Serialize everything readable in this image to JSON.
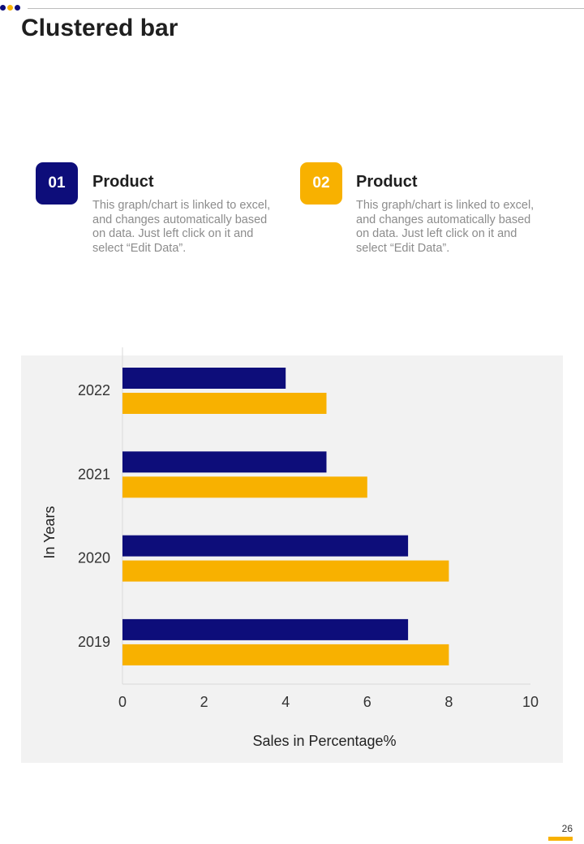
{
  "page": {
    "title": "Clustered bar",
    "page_number": "26"
  },
  "colors": {
    "navy": "#0d0d7a",
    "gold": "#f8b100",
    "dot_colors": [
      "#0d0d7a",
      "#f8b100",
      "#0d0d7a"
    ]
  },
  "cards": [
    {
      "number": "01",
      "title": "Product",
      "description": "This graph/chart is linked to excel, and changes automatically based on data. Just left click on it and select “Edit Data”.",
      "color": "#0d0d7a"
    },
    {
      "number": "02",
      "title": "Product",
      "description": "This graph/chart is linked to excel, and changes automatically based on data. Just left click on it and select “Edit Data”.",
      "color": "#f8b100"
    }
  ],
  "chart_data": {
    "type": "bar",
    "orientation": "horizontal",
    "categories": [
      "2022",
      "2021",
      "2020",
      "2019"
    ],
    "series": [
      {
        "name": "Product 01",
        "color": "#0d0d7a",
        "values": [
          4,
          5,
          7,
          7
        ]
      },
      {
        "name": "Product 02",
        "color": "#f8b100",
        "values": [
          5,
          6,
          8,
          8
        ]
      }
    ],
    "xlabel": "Sales in Percentage%",
    "ylabel": "In Years",
    "xlim": [
      0,
      10
    ],
    "xticks": [
      "0",
      "2",
      "4",
      "6",
      "8",
      "10"
    ],
    "grid": false,
    "legend": "none"
  }
}
